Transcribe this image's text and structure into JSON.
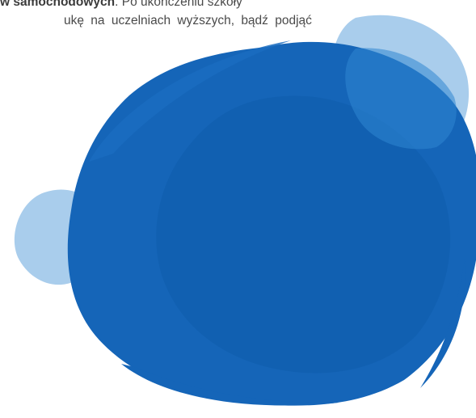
{
  "text": {
    "line1_bold": "w samochodowych",
    "line1_rest": ". Po ukończeniu szkoły",
    "line2": "ukę na uczelniach wyższych, bądź podjąć"
  },
  "colors": {
    "main_blob": "#1565b8",
    "main_blob_dark": "#0d5aa8",
    "light_blob": "#a9cdec",
    "text": "#4a4a4a"
  }
}
